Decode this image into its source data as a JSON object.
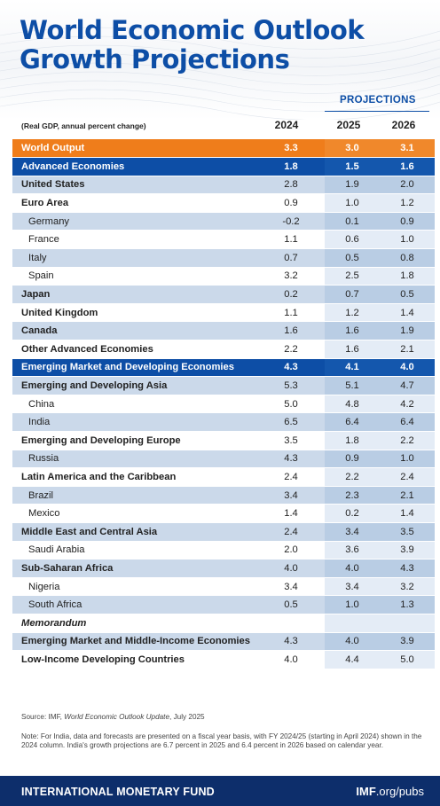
{
  "title": {
    "line1": "World Economic Outlook",
    "line2": "Growth Projections"
  },
  "projections_label": "PROJECTIONS",
  "table_header": {
    "description": "(Real GDP, annual percent change)",
    "years": [
      "2024",
      "2025",
      "2026"
    ]
  },
  "rows": [
    {
      "name": "World Output",
      "v2024": "3.3",
      "v2025": "3.0",
      "v2026": "3.1"
    },
    {
      "name": "Advanced Economies",
      "v2024": "1.8",
      "v2025": "1.5",
      "v2026": "1.6"
    },
    {
      "name": "United States",
      "v2024": "2.8",
      "v2025": "1.9",
      "v2026": "2.0"
    },
    {
      "name": "Euro Area",
      "v2024": "0.9",
      "v2025": "1.0",
      "v2026": "1.2"
    },
    {
      "name": "Germany",
      "v2024": "-0.2",
      "v2025": "0.1",
      "v2026": "0.9"
    },
    {
      "name": "France",
      "v2024": "1.1",
      "v2025": "0.6",
      "v2026": "1.0"
    },
    {
      "name": "Italy",
      "v2024": "0.7",
      "v2025": "0.5",
      "v2026": "0.8"
    },
    {
      "name": "Spain",
      "v2024": "3.2",
      "v2025": "2.5",
      "v2026": "1.8"
    },
    {
      "name": "Japan",
      "v2024": "0.2",
      "v2025": "0.7",
      "v2026": "0.5"
    },
    {
      "name": "United Kingdom",
      "v2024": "1.1",
      "v2025": "1.2",
      "v2026": "1.4"
    },
    {
      "name": "Canada",
      "v2024": "1.6",
      "v2025": "1.6",
      "v2026": "1.9"
    },
    {
      "name": "Other Advanced Economies",
      "v2024": "2.2",
      "v2025": "1.6",
      "v2026": "2.1"
    },
    {
      "name": "Emerging Market and Developing Economies",
      "v2024": "4.3",
      "v2025": "4.1",
      "v2026": "4.0"
    },
    {
      "name": "Emerging and Developing Asia",
      "v2024": "5.3",
      "v2025": "5.1",
      "v2026": "4.7"
    },
    {
      "name": "China",
      "v2024": "5.0",
      "v2025": "4.8",
      "v2026": "4.2"
    },
    {
      "name": "India",
      "v2024": "6.5",
      "v2025": "6.4",
      "v2026": "6.4"
    },
    {
      "name": "Emerging and Developing Europe",
      "v2024": "3.5",
      "v2025": "1.8",
      "v2026": "2.2"
    },
    {
      "name": "Russia",
      "v2024": "4.3",
      "v2025": "0.9",
      "v2026": "1.0"
    },
    {
      "name": "Latin America and the Caribbean",
      "v2024": "2.4",
      "v2025": "2.2",
      "v2026": "2.4"
    },
    {
      "name": "Brazil",
      "v2024": "3.4",
      "v2025": "2.3",
      "v2026": "2.1"
    },
    {
      "name": "Mexico",
      "v2024": "1.4",
      "v2025": "0.2",
      "v2026": "1.4"
    },
    {
      "name": "Middle East and Central Asia",
      "v2024": "2.4",
      "v2025": "3.4",
      "v2026": "3.5"
    },
    {
      "name": "Saudi Arabia",
      "v2024": "2.0",
      "v2025": "3.6",
      "v2026": "3.9"
    },
    {
      "name": "Sub-Saharan Africa",
      "v2024": "4.0",
      "v2025": "4.0",
      "v2026": "4.3"
    },
    {
      "name": "Nigeria",
      "v2024": "3.4",
      "v2025": "3.4",
      "v2026": "3.2"
    },
    {
      "name": "South Africa",
      "v2024": "0.5",
      "v2025": "1.0",
      "v2026": "1.3"
    },
    {
      "name": "Memorandum",
      "v2024": "",
      "v2025": "",
      "v2026": ""
    },
    {
      "name": "Emerging Market and Middle-Income Economies",
      "v2024": "4.3",
      "v2025": "4.0",
      "v2026": "3.9"
    },
    {
      "name": "Low-Income Developing Countries",
      "v2024": "4.0",
      "v2025": "4.4",
      "v2026": "5.0"
    }
  ],
  "source": {
    "prefix": "Source: IMF, ",
    "publication": "World Economic Outlook Update",
    "suffix": ", July 2025"
  },
  "note": "Note: For India, data and forecasts are presented on a fiscal year basis, with FY 2024/25 (starting in April 2024) shown in the 2024 column. India's growth projections are 6.7 percent in 2025 and 6.4 percent in 2026 based on calendar year.",
  "footer": {
    "organization": "INTERNATIONAL MONETARY FUND",
    "url_bold": "IMF",
    "url_light": ".org/pubs"
  },
  "colors": {
    "brand_blue": "#0d4ea6",
    "world_orange": "#ef7d1b",
    "footer_navy": "#0d2e6b",
    "shade_blue": "#cbd9ea"
  }
}
